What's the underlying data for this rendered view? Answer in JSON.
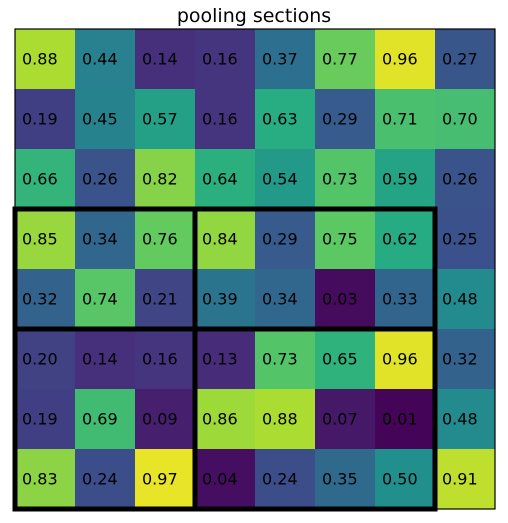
{
  "chart_data": {
    "type": "heatmap",
    "title": "pooling sections",
    "colormap": "viridis",
    "value_range": [
      0,
      1
    ],
    "rows": 8,
    "cols": 8,
    "values": [
      [
        "0.88",
        "0.44",
        "0.14",
        "0.16",
        "0.37",
        "0.77",
        "0.96",
        "0.27"
      ],
      [
        "0.19",
        "0.45",
        "0.57",
        "0.16",
        "0.63",
        "0.29",
        "0.71",
        "0.70"
      ],
      [
        "0.66",
        "0.26",
        "0.82",
        "0.64",
        "0.54",
        "0.73",
        "0.59",
        "0.26"
      ],
      [
        "0.85",
        "0.34",
        "0.76",
        "0.84",
        "0.29",
        "0.75",
        "0.62",
        "0.25"
      ],
      [
        "0.32",
        "0.74",
        "0.21",
        "0.39",
        "0.34",
        "0.03",
        "0.33",
        "0.48"
      ],
      [
        "0.20",
        "0.14",
        "0.16",
        "0.13",
        "0.73",
        "0.65",
        "0.96",
        "0.32"
      ],
      [
        "0.19",
        "0.69",
        "0.09",
        "0.86",
        "0.88",
        "0.07",
        "0.01",
        "0.48"
      ],
      [
        "0.83",
        "0.24",
        "0.97",
        "0.04",
        "0.24",
        "0.35",
        "0.50",
        "0.91"
      ]
    ],
    "pooling_sections": [
      {
        "row_start": 3,
        "row_end": 4,
        "col_start": 0,
        "col_end": 2
      },
      {
        "row_start": 3,
        "row_end": 4,
        "col_start": 3,
        "col_end": 6
      },
      {
        "row_start": 5,
        "row_end": 7,
        "col_start": 0,
        "col_end": 2
      },
      {
        "row_start": 5,
        "row_end": 7,
        "col_start": 3,
        "col_end": 6
      }
    ],
    "section_border_color": "#000000",
    "grid": false,
    "axes_visible": false
  }
}
